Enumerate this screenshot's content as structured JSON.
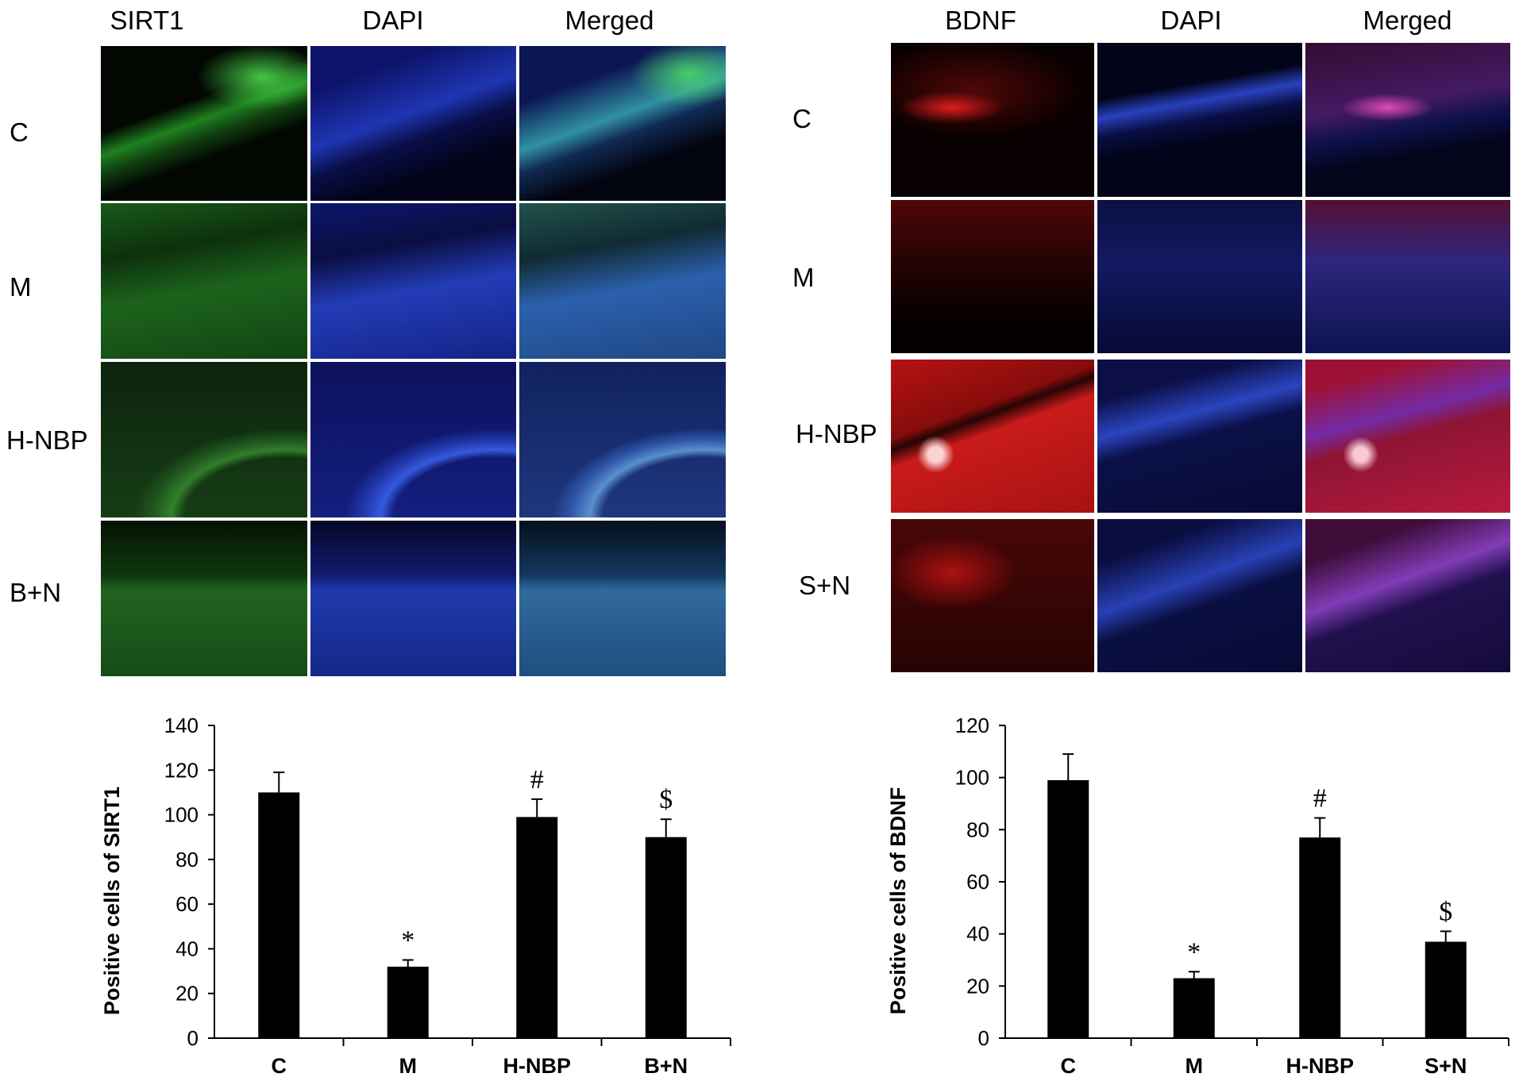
{
  "left_figure": {
    "columns": [
      "SIRT1",
      "DAPI",
      "Merged"
    ],
    "rows": [
      "C",
      "M",
      "H-NBP",
      "B+N"
    ]
  },
  "right_figure": {
    "columns": [
      "BDNF",
      "DAPI",
      "Merged"
    ],
    "rows": [
      "C",
      "M",
      "H-NBP",
      "S+N"
    ]
  },
  "colors": {
    "green": "#39c23c",
    "blue": "#2f4fe0",
    "red": "#e81616",
    "bar": "#000000"
  },
  "chart_data": [
    {
      "type": "bar",
      "categories": [
        "C",
        "M",
        "H-NBP",
        "B+N"
      ],
      "values": [
        110,
        32,
        99,
        90
      ],
      "errors": [
        9,
        3,
        8,
        8
      ],
      "annotations": [
        "",
        "*",
        "#",
        "$"
      ],
      "ylabel": "Positive cells of SIRT1",
      "xlabel": "",
      "ylim": [
        0,
        140
      ],
      "yticks": [
        0,
        20,
        40,
        60,
        80,
        100,
        120,
        140
      ],
      "grid": false
    },
    {
      "type": "bar",
      "categories": [
        "C",
        "M",
        "H-NBP",
        "S+N"
      ],
      "values": [
        99,
        23,
        77,
        37
      ],
      "errors": [
        10,
        2.5,
        7.5,
        4
      ],
      "annotations": [
        "",
        "*",
        "#",
        "$"
      ],
      "ylabel": "Positive cells of BDNF",
      "xlabel": "",
      "ylim": [
        0,
        120
      ],
      "yticks": [
        0,
        20,
        40,
        60,
        80,
        100,
        120
      ],
      "grid": false
    }
  ]
}
